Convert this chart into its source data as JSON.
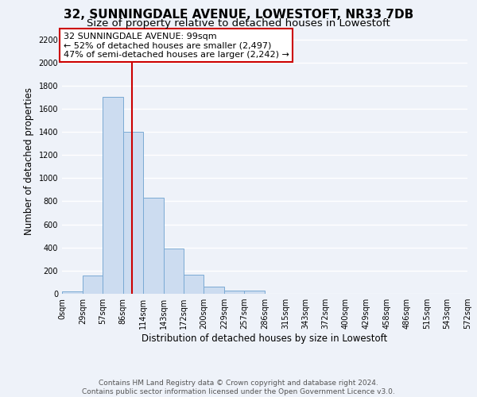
{
  "title": "32, SUNNINGDALE AVENUE, LOWESTOFT, NR33 7DB",
  "subtitle": "Size of property relative to detached houses in Lowestoft",
  "xlabel": "Distribution of detached houses by size in Lowestoft",
  "ylabel": "Number of detached properties",
  "bar_edges": [
    0,
    29,
    57,
    86,
    114,
    143,
    172,
    200,
    229,
    257,
    286,
    315,
    343,
    372,
    400,
    429,
    458,
    486,
    515,
    543,
    572
  ],
  "bar_heights": [
    20,
    160,
    1700,
    1400,
    830,
    390,
    165,
    65,
    30,
    25,
    0,
    0,
    0,
    0,
    0,
    0,
    0,
    0,
    0,
    0
  ],
  "bar_color": "#ccdcf0",
  "bar_edge_color": "#7aaad4",
  "vline_color": "#cc0000",
  "vline_x": 99,
  "annotation_line1": "32 SUNNINGDALE AVENUE: 99sqm",
  "annotation_line2": "← 52% of detached houses are smaller (2,497)",
  "annotation_line3": "47% of semi-detached houses are larger (2,242) →",
  "annotation_box_edgecolor": "#cc0000",
  "annotation_box_facecolor": "white",
  "ylim": [
    0,
    2300
  ],
  "yticks": [
    0,
    200,
    400,
    600,
    800,
    1000,
    1200,
    1400,
    1600,
    1800,
    2000,
    2200
  ],
  "xlim_max": 572,
  "tick_labels": [
    "0sqm",
    "29sqm",
    "57sqm",
    "86sqm",
    "114sqm",
    "143sqm",
    "172sqm",
    "200sqm",
    "229sqm",
    "257sqm",
    "286sqm",
    "315sqm",
    "343sqm",
    "372sqm",
    "400sqm",
    "429sqm",
    "458sqm",
    "486sqm",
    "515sqm",
    "543sqm",
    "572sqm"
  ],
  "footer_text": "Contains HM Land Registry data © Crown copyright and database right 2024.\nContains public sector information licensed under the Open Government Licence v3.0.",
  "background_color": "#eef2f9",
  "grid_color": "#ffffff",
  "title_fontsize": 11,
  "subtitle_fontsize": 9.5,
  "axis_label_fontsize": 8.5,
  "tick_fontsize": 7,
  "annotation_fontsize": 8,
  "footer_fontsize": 6.5
}
